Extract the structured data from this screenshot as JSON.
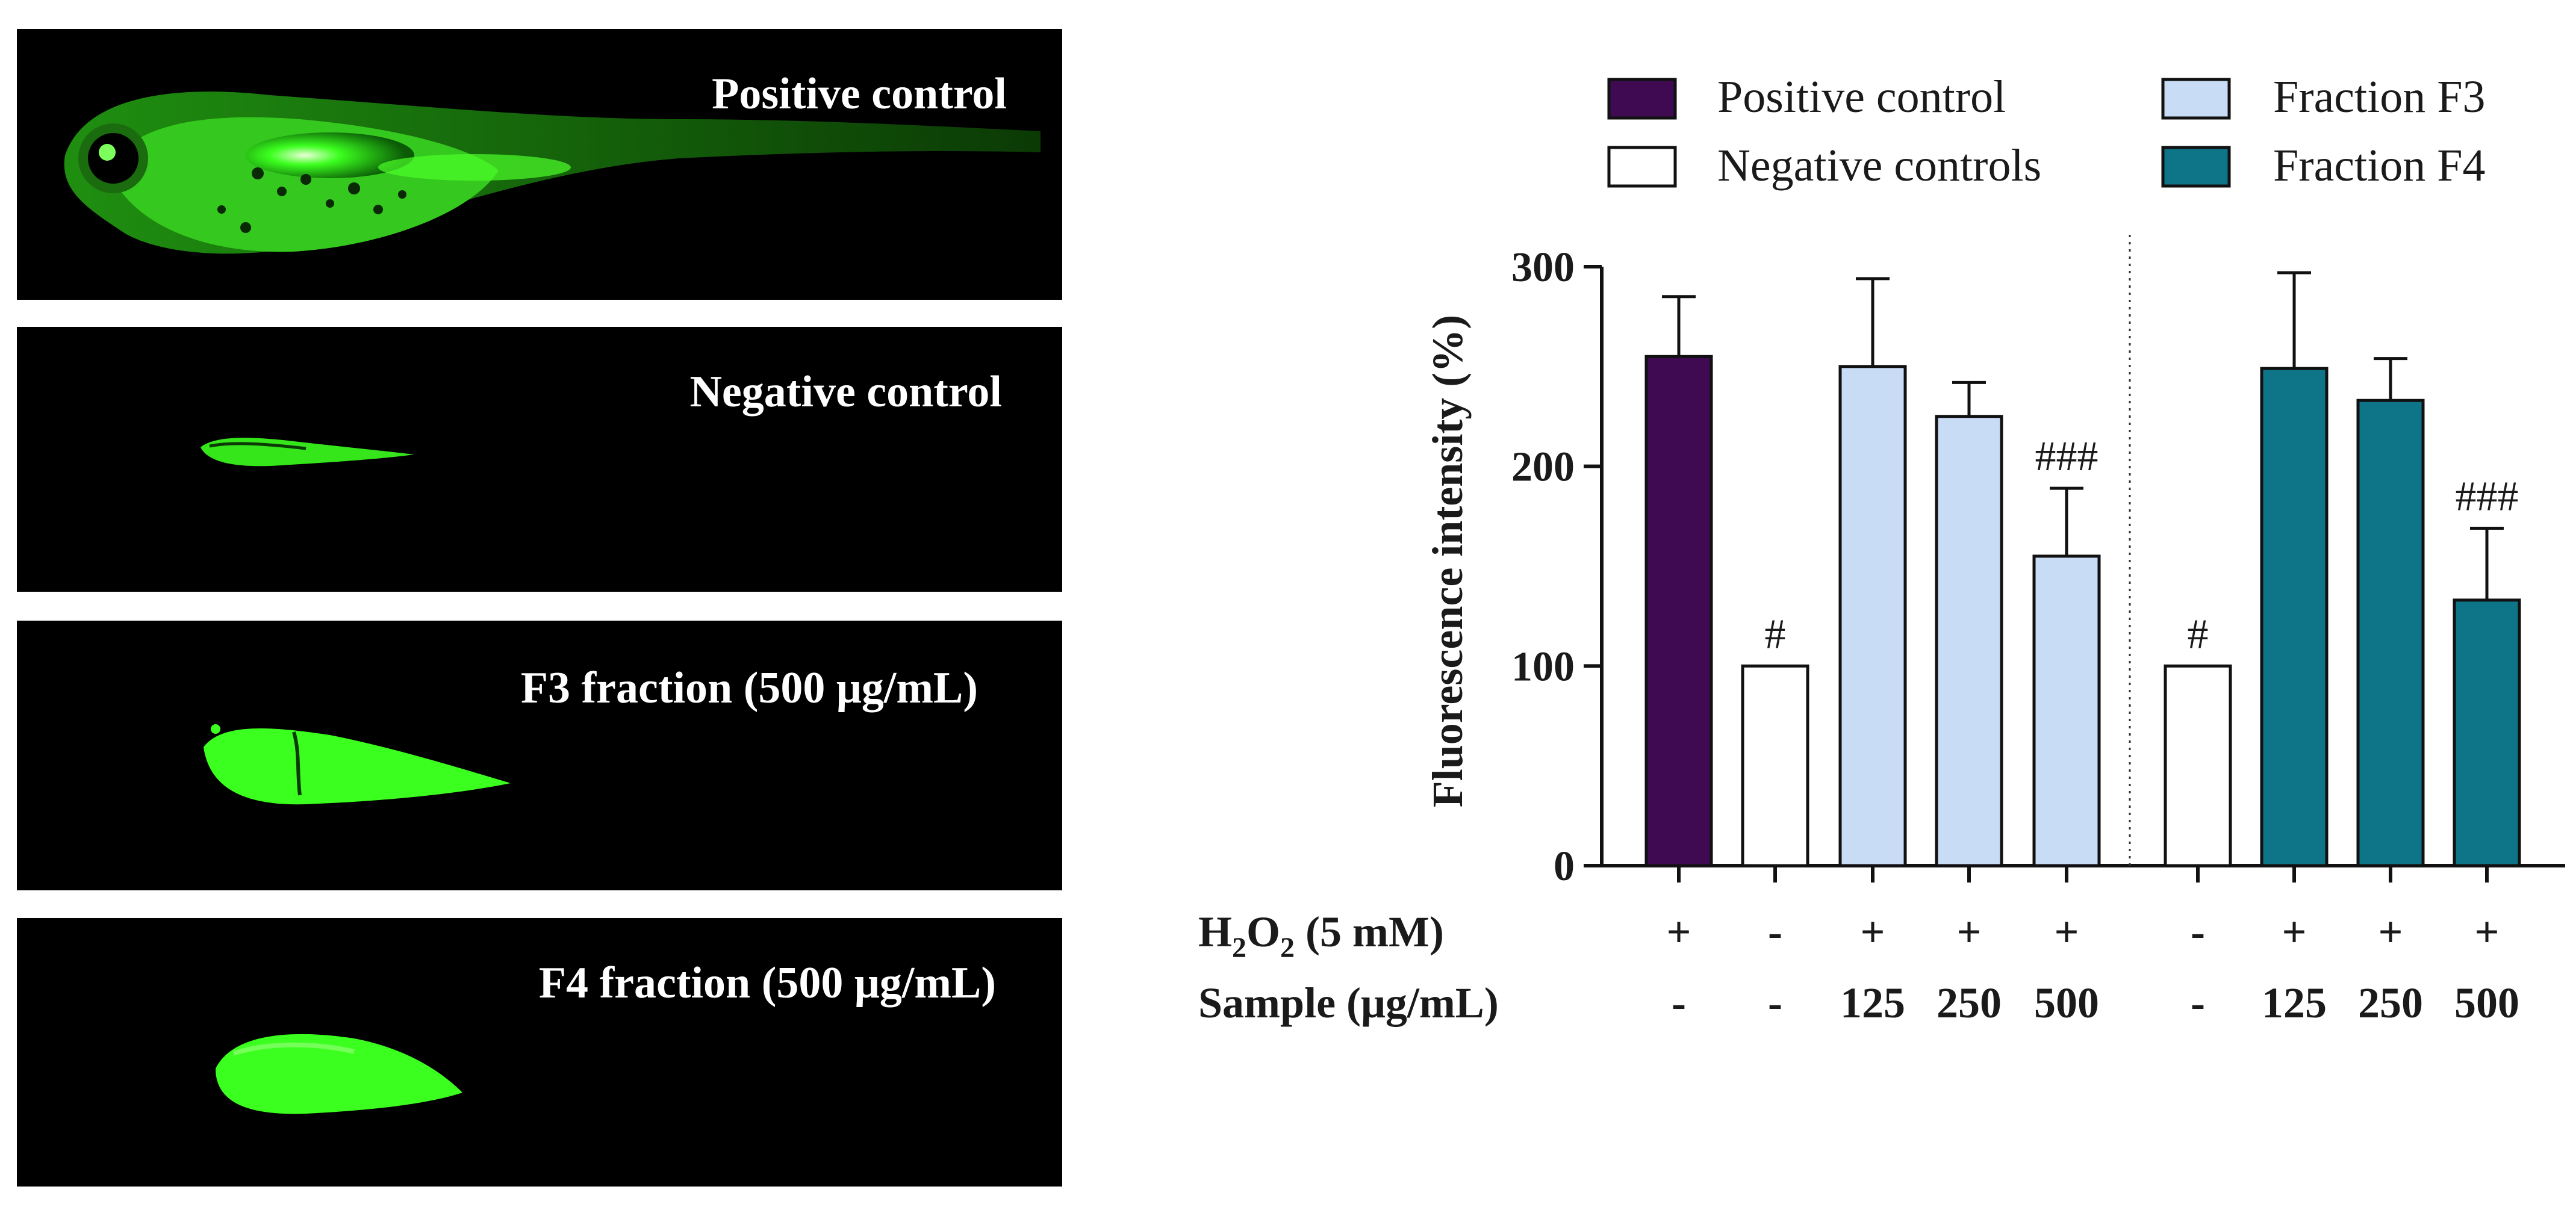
{
  "panels": [
    {
      "label": "Positive control"
    },
    {
      "label": "Negative control"
    },
    {
      "label": "F3 fraction (500 μg/mL)"
    },
    {
      "label": "F4 fraction (500 μg/mL)"
    }
  ],
  "colors": {
    "positive": "#3f0a52",
    "negative": "#ffffff",
    "f3": "#c8dcf5",
    "f4": "#0e7488",
    "fish": "#3bff1e"
  },
  "chart_data": {
    "type": "bar",
    "ylabel": "Fluorescence intensity (%)",
    "ylim": [
      0,
      300
    ],
    "yticks": [
      0,
      100,
      200,
      300
    ],
    "legend": [
      {
        "label": "Positive control",
        "color_key": "positive"
      },
      {
        "label": "Negative controls",
        "color_key": "negative"
      },
      {
        "label": "Fraction F3",
        "color_key": "f3"
      },
      {
        "label": "Fraction F4",
        "color_key": "f4"
      }
    ],
    "bars": [
      {
        "group": "Positive control",
        "value": 255,
        "error": 30,
        "h2o2": "+",
        "sample": "-",
        "annotation": ""
      },
      {
        "group": "Negative controls",
        "value": 100,
        "error": 0,
        "h2o2": "-",
        "sample": "-",
        "annotation": "#"
      },
      {
        "group": "Fraction F3",
        "value": 250,
        "error": 44,
        "h2o2": "+",
        "sample": "125",
        "annotation": ""
      },
      {
        "group": "Fraction F3",
        "value": 225,
        "error": 17,
        "h2o2": "+",
        "sample": "250",
        "annotation": ""
      },
      {
        "group": "Fraction F3",
        "value": 155,
        "error": 34,
        "h2o2": "+",
        "sample": "500",
        "annotation": "###"
      },
      {
        "group": "Negative controls",
        "value": 100,
        "error": 0,
        "h2o2": "-",
        "sample": "-",
        "annotation": "#"
      },
      {
        "group": "Fraction F4",
        "value": 249,
        "error": 48,
        "h2o2": "+",
        "sample": "125",
        "annotation": ""
      },
      {
        "group": "Fraction F4",
        "value": 233,
        "error": 21,
        "h2o2": "+",
        "sample": "250",
        "annotation": ""
      },
      {
        "group": "Fraction F4",
        "value": 133,
        "error": 36,
        "h2o2": "+",
        "sample": "500",
        "annotation": "###"
      }
    ],
    "row_labels": {
      "h2o2_prefix": "H",
      "h2o2_sub1": "2",
      "h2o2_mid": "O",
      "h2o2_sub2": "2",
      "h2o2_suffix": " (5 mM)",
      "sample": "Sample (μg/mL)"
    }
  }
}
